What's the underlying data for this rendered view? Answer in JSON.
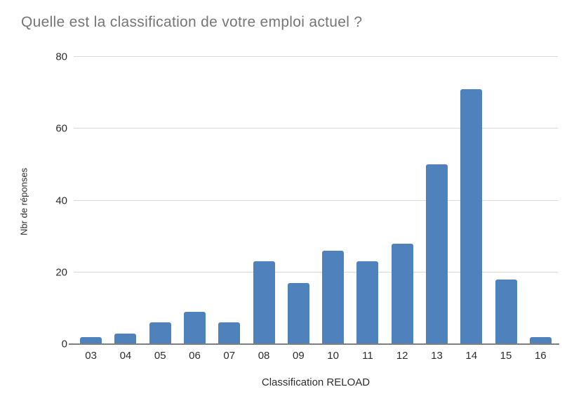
{
  "chart_data": {
    "type": "bar",
    "title": "Quelle est la classification de votre emploi actuel ?",
    "categories": [
      "03",
      "04",
      "05",
      "06",
      "07",
      "08",
      "09",
      "10",
      "11",
      "12",
      "13",
      "14",
      "15",
      "16"
    ],
    "values": [
      2,
      3,
      6,
      9,
      6,
      23,
      17,
      26,
      23,
      28,
      50,
      71,
      18,
      2
    ],
    "xlabel": "Classification RELOAD",
    "ylabel": "Nbr de réponses",
    "ylim": [
      0,
      80
    ],
    "y_ticks": [
      0,
      20,
      40,
      60,
      80
    ],
    "grid": "horizontal",
    "legend": "none",
    "colors": {
      "bar": "#4F81BD",
      "gridline": "#D8D8D8",
      "axis_line": "#7F7F7F",
      "title_text": "#767676",
      "tick_text": "#2E2E2E"
    }
  }
}
